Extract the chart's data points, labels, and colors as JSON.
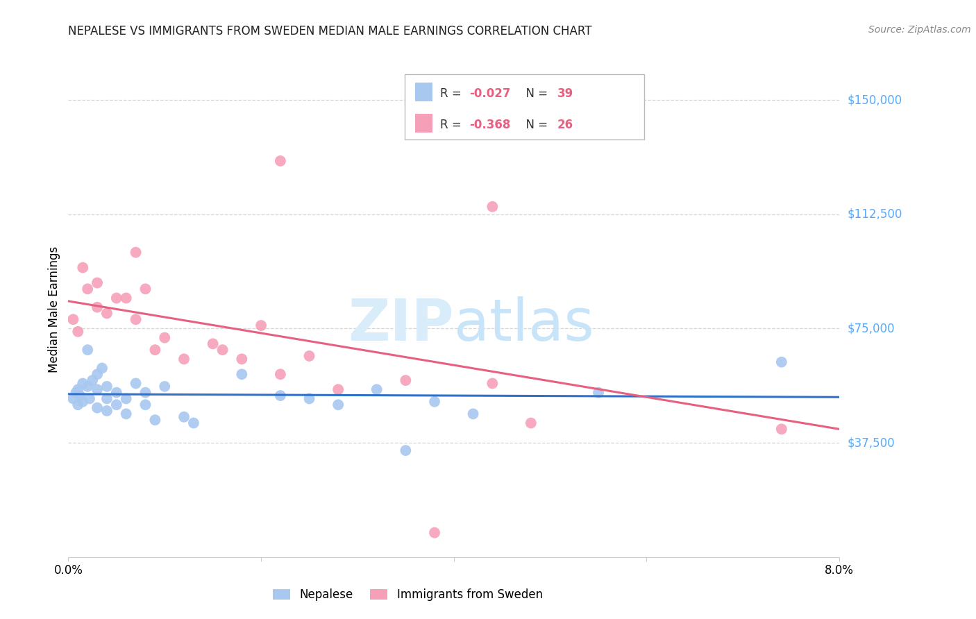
{
  "title": "NEPALESE VS IMMIGRANTS FROM SWEDEN MEDIAN MALE EARNINGS CORRELATION CHART",
  "source": "Source: ZipAtlas.com",
  "ylabel": "Median Male Earnings",
  "xlim": [
    0.0,
    0.08
  ],
  "ylim": [
    0,
    162500
  ],
  "ytick_vals": [
    37500,
    75000,
    112500,
    150000
  ],
  "ytick_labels": [
    "$37,500",
    "$75,000",
    "$112,500",
    "$150,000"
  ],
  "xticks": [
    0.0,
    0.02,
    0.04,
    0.06,
    0.08
  ],
  "xtick_labels": [
    "0.0%",
    "",
    "",
    "",
    "8.0%"
  ],
  "background_color": "#ffffff",
  "grid_color": "#cccccc",
  "series1_color": "#a8c8f0",
  "series2_color": "#f5a0b8",
  "line1_color": "#3070c8",
  "line2_color": "#e86080",
  "ytick_color": "#55aaff",
  "series1_label": "Nepalese",
  "series2_label": "Immigrants from Sweden",
  "legend_R1_val": "-0.027",
  "legend_N1_val": "39",
  "legend_R2_val": "-0.368",
  "legend_N2_val": "26",
  "nepalese_x": [
    0.0005,
    0.0008,
    0.001,
    0.001,
    0.0012,
    0.0015,
    0.0015,
    0.002,
    0.002,
    0.0022,
    0.0025,
    0.003,
    0.003,
    0.003,
    0.0035,
    0.004,
    0.004,
    0.004,
    0.005,
    0.005,
    0.006,
    0.006,
    0.007,
    0.008,
    0.008,
    0.009,
    0.01,
    0.012,
    0.013,
    0.018,
    0.022,
    0.025,
    0.028,
    0.032,
    0.035,
    0.038,
    0.042,
    0.055,
    0.074
  ],
  "nepalese_y": [
    52000,
    54000,
    50000,
    55000,
    53000,
    51000,
    57000,
    68000,
    56000,
    52000,
    58000,
    60000,
    55000,
    49000,
    62000,
    56000,
    52000,
    48000,
    54000,
    50000,
    52000,
    47000,
    57000,
    54000,
    50000,
    45000,
    56000,
    46000,
    44000,
    60000,
    53000,
    52000,
    50000,
    55000,
    35000,
    51000,
    47000,
    54000,
    64000
  ],
  "sweden_x": [
    0.0005,
    0.001,
    0.0015,
    0.002,
    0.003,
    0.003,
    0.004,
    0.005,
    0.006,
    0.007,
    0.007,
    0.008,
    0.009,
    0.01,
    0.012,
    0.015,
    0.016,
    0.018,
    0.02,
    0.022,
    0.025,
    0.028,
    0.035,
    0.044,
    0.048,
    0.074
  ],
  "sweden_y": [
    78000,
    74000,
    95000,
    88000,
    90000,
    82000,
    80000,
    85000,
    85000,
    100000,
    78000,
    88000,
    68000,
    72000,
    65000,
    70000,
    68000,
    65000,
    76000,
    60000,
    66000,
    55000,
    58000,
    57000,
    44000,
    42000
  ],
  "sweden_high1_x": [
    0.022
  ],
  "sweden_high1_y": [
    130000
  ],
  "sweden_high2_x": [
    0.044
  ],
  "sweden_high2_y": [
    115000
  ],
  "sweden_low1_x": [
    0.038
  ],
  "sweden_low1_y": [
    8000
  ],
  "line1_x": [
    0.0,
    0.08
  ],
  "line1_y": [
    53500,
    52500
  ],
  "line2_x": [
    0.0,
    0.08
  ],
  "line2_y": [
    84000,
    42000
  ]
}
